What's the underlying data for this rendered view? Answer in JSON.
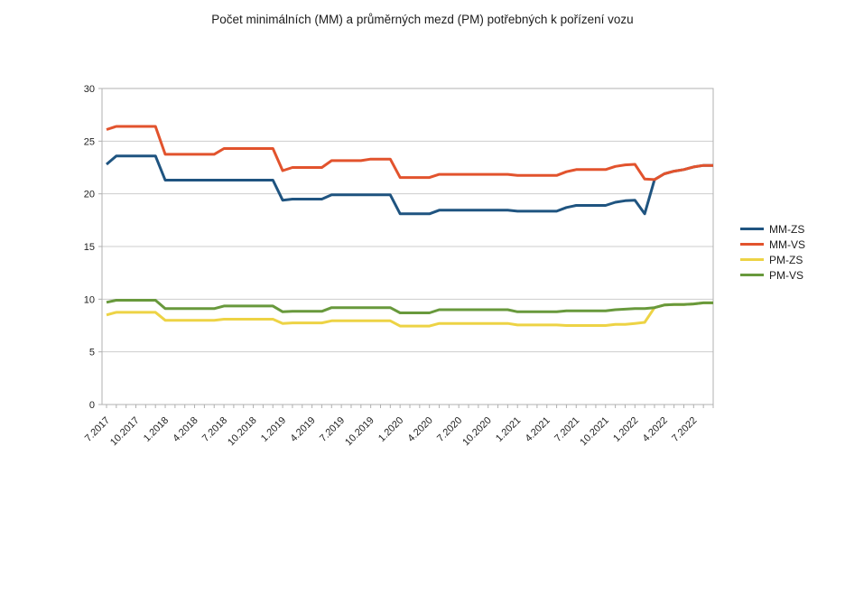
{
  "chart_data": {
    "type": "line",
    "title": "Počet minimálních (MM) a průměrných mezd (PM) potřebných k pořízení vozu",
    "x_labels": [
      "7.2017",
      "10.2017",
      "1.2018",
      "4.2018",
      "7.2018",
      "10.2018",
      "1.2019",
      "4.2019",
      "7.2019",
      "10.2019",
      "1.2020",
      "4.2020",
      "7.2020",
      "10.2020",
      "1.2021",
      "4.2021",
      "7.2021",
      "10.2021",
      "1.2022",
      "4.2022",
      "7.2022"
    ],
    "label_every": 3,
    "n_points": 63,
    "ylim": [
      0,
      30
    ],
    "yticks": [
      0,
      5,
      10,
      15,
      20,
      25,
      30
    ],
    "grid": "horizontal",
    "legend_position": "right",
    "colors": {
      "grid": "#cdcdcd",
      "axis": "#b0b0b0",
      "tick_text": "#1e1e1e"
    },
    "series": [
      {
        "name": "MM-ZS",
        "color": "#1f5480",
        "values": [
          22.8,
          23.6,
          23.6,
          23.6,
          23.6,
          23.6,
          21.3,
          21.3,
          21.3,
          21.3,
          21.3,
          21.3,
          21.3,
          21.3,
          21.3,
          21.3,
          21.3,
          21.3,
          19.4,
          19.5,
          19.5,
          19.5,
          19.5,
          19.9,
          19.9,
          19.9,
          19.9,
          19.9,
          19.9,
          19.9,
          18.1,
          18.1,
          18.1,
          18.1,
          18.45,
          18.45,
          18.45,
          18.45,
          18.45,
          18.45,
          18.45,
          18.45,
          18.35,
          18.35,
          18.35,
          18.35,
          18.35,
          18.7,
          18.9,
          18.9,
          18.9,
          18.9,
          19.2,
          19.35,
          19.4,
          18.1,
          21.35,
          21.9,
          22.15,
          22.3,
          22.55,
          22.7,
          22.7
        ]
      },
      {
        "name": "MM-VS",
        "color": "#e2532d",
        "values": [
          26.1,
          26.4,
          26.4,
          26.4,
          26.4,
          26.4,
          23.75,
          23.75,
          23.75,
          23.75,
          23.75,
          23.75,
          24.3,
          24.3,
          24.3,
          24.3,
          24.3,
          24.3,
          22.2,
          22.5,
          22.5,
          22.5,
          22.5,
          23.15,
          23.15,
          23.15,
          23.15,
          23.3,
          23.3,
          23.3,
          21.55,
          21.55,
          21.55,
          21.55,
          21.85,
          21.85,
          21.85,
          21.85,
          21.85,
          21.85,
          21.85,
          21.85,
          21.75,
          21.75,
          21.75,
          21.75,
          21.75,
          22.1,
          22.3,
          22.3,
          22.3,
          22.3,
          22.6,
          22.75,
          22.8,
          21.4,
          21.35,
          21.9,
          22.15,
          22.3,
          22.55,
          22.7,
          22.7
        ]
      },
      {
        "name": "PM-ZS",
        "color": "#edd345",
        "values": [
          8.5,
          8.75,
          8.75,
          8.75,
          8.75,
          8.75,
          8.0,
          8.0,
          8.0,
          8.0,
          8.0,
          8.0,
          8.1,
          8.1,
          8.1,
          8.1,
          8.1,
          8.1,
          7.7,
          7.75,
          7.75,
          7.75,
          7.75,
          7.95,
          7.95,
          7.95,
          7.95,
          7.95,
          7.95,
          7.95,
          7.45,
          7.45,
          7.45,
          7.45,
          7.7,
          7.7,
          7.7,
          7.7,
          7.7,
          7.7,
          7.7,
          7.7,
          7.55,
          7.55,
          7.55,
          7.55,
          7.55,
          7.5,
          7.5,
          7.5,
          7.5,
          7.5,
          7.6,
          7.6,
          7.7,
          7.8,
          9.2,
          9.45,
          9.5,
          9.5,
          9.55,
          9.65,
          9.65
        ]
      },
      {
        "name": "PM-VS",
        "color": "#68993c",
        "values": [
          9.7,
          9.9,
          9.9,
          9.9,
          9.9,
          9.9,
          9.1,
          9.1,
          9.1,
          9.1,
          9.1,
          9.1,
          9.35,
          9.35,
          9.35,
          9.35,
          9.35,
          9.35,
          8.8,
          8.85,
          8.85,
          8.85,
          8.85,
          9.2,
          9.2,
          9.2,
          9.2,
          9.2,
          9.2,
          9.2,
          8.7,
          8.7,
          8.7,
          8.7,
          9.0,
          9.0,
          9.0,
          9.0,
          9.0,
          9.0,
          9.0,
          9.0,
          8.8,
          8.8,
          8.8,
          8.8,
          8.8,
          8.9,
          8.9,
          8.9,
          8.9,
          8.9,
          9.0,
          9.05,
          9.1,
          9.1,
          9.2,
          9.45,
          9.5,
          9.5,
          9.55,
          9.65,
          9.65
        ]
      }
    ]
  }
}
